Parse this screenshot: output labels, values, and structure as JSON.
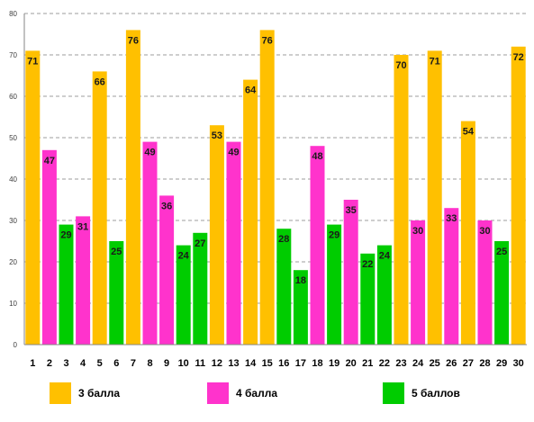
{
  "chart_data": {
    "type": "bar",
    "title": "",
    "xlabel": "",
    "ylabel": "",
    "ylim": [
      0,
      80
    ],
    "yticks": [
      "0",
      "10",
      "20",
      "30",
      "40",
      "50",
      "60",
      "70",
      "80"
    ],
    "grid": true,
    "legend_placement": "bottom",
    "categories": [
      "1",
      "2",
      "3",
      "4",
      "5",
      "6",
      "7",
      "8",
      "9",
      "10",
      "11",
      "12",
      "13",
      "14",
      "15",
      "16",
      "17",
      "18",
      "19",
      "20",
      "21",
      "22",
      "23",
      "24",
      "25",
      "26",
      "27",
      "28",
      "29",
      "30"
    ],
    "values": [
      71,
      47,
      29,
      31,
      66,
      25,
      76,
      49,
      36,
      24,
      27,
      53,
      49,
      64,
      76,
      28,
      18,
      48,
      29,
      35,
      22,
      24,
      70,
      30,
      71,
      33,
      54,
      30,
      25,
      72
    ],
    "groups": [
      0,
      1,
      2,
      1,
      0,
      2,
      0,
      1,
      1,
      2,
      2,
      0,
      1,
      0,
      0,
      2,
      2,
      1,
      2,
      1,
      2,
      2,
      0,
      1,
      0,
      1,
      0,
      1,
      2,
      0
    ],
    "legend": [
      {
        "label": "3 балла",
        "color": "#FFC000"
      },
      {
        "label": "4 балла",
        "color": "#FF33CC"
      },
      {
        "label": "5 баллов",
        "color": "#00CC00"
      }
    ]
  }
}
